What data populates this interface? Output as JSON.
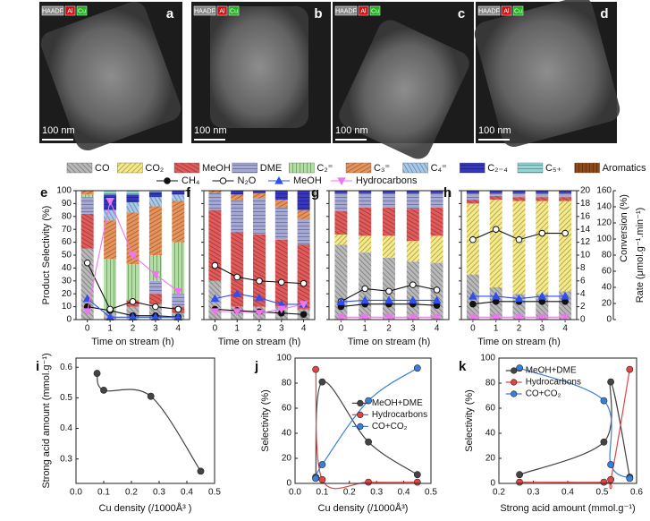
{
  "images": [
    {
      "letter": "a",
      "tags": [
        "HAADF",
        "Al",
        "Cu"
      ],
      "scale": "100 nm"
    },
    {
      "letter": "b",
      "tags": [
        "HAADF",
        "Al",
        "Cu"
      ],
      "scale": "100 nm"
    },
    {
      "letter": "c",
      "tags": [
        "HAADF",
        "Al",
        "Cu"
      ],
      "scale": "100 nm"
    },
    {
      "letter": "d",
      "tags": [
        "HAADF",
        "Al",
        "Cu"
      ],
      "scale": "100 nm"
    }
  ],
  "stack_series": [
    {
      "name": "CO",
      "color": "#b9b9b9",
      "hatch": 45
    },
    {
      "name": "CO₂",
      "color": "#f6ea86",
      "hatch": -45
    },
    {
      "name": "MeOH",
      "color": "#e25a5a",
      "hatch": 30
    },
    {
      "name": "DME",
      "color": "#a3a8d8",
      "hatch": 0
    },
    {
      "name": "C₂⁼",
      "color": "#b3dfa6",
      "hatch": 90
    },
    {
      "name": "C₃⁼",
      "color": "#e8935a",
      "hatch": -30
    },
    {
      "name": "C₄⁼",
      "color": "#a7c9ea",
      "hatch": 60
    },
    {
      "name": "C₂₋₄",
      "color": "#3535c8",
      "hatch": 0
    },
    {
      "name": "C₅₊",
      "color": "#8fd6d6",
      "hatch": 0
    },
    {
      "name": "Aromatics",
      "color": "#8b4a1c",
      "hatch": 90
    }
  ],
  "line_series": [
    {
      "name": "CH₄",
      "color": "#111111",
      "marker": "filled-circle",
      "axis": "conversion"
    },
    {
      "name": "N₂O",
      "color": "#111111",
      "marker": "open-circle",
      "axis": "conversion"
    },
    {
      "name": "MeOH",
      "color": "#2f4ff0",
      "marker": "triangle",
      "axis": "rate"
    },
    {
      "name": "Hydrocarbons",
      "color": "#ee77ee",
      "marker": "down-triangle",
      "axis": "rate"
    }
  ],
  "time_panels": {
    "categories": [
      "0",
      "1",
      "2",
      "3",
      "4"
    ],
    "x_label": "Time on stream (h)",
    "selectivity_axis": {
      "label": "Product Selectivity (%)",
      "ylim": [
        0,
        100
      ],
      "yticks": [
        0,
        10,
        20,
        30,
        40,
        50,
        60,
        70,
        80,
        90,
        100
      ]
    },
    "conversion_axis": {
      "label": "Conversion (%)",
      "ylim": [
        0,
        20
      ],
      "yticks": [
        0,
        2,
        4,
        6,
        8,
        10,
        12,
        14,
        16,
        18,
        20
      ]
    },
    "rate_axis": {
      "label": "Rate (μmol.g⁻¹.min⁻¹)",
      "ylim": [
        0,
        160
      ],
      "yticks": [
        0,
        20,
        40,
        60,
        80,
        100,
        120,
        140,
        160
      ]
    },
    "panels": [
      {
        "letter": "e",
        "stacks": [
          [
            55,
            5,
            10,
            12,
            5
          ],
          [
            0,
            0,
            0,
            0,
            0
          ],
          [
            27,
            0,
            5,
            8,
            5
          ],
          [
            13,
            0,
            0,
            10,
            10
          ],
          [
            2,
            42,
            28,
            20,
            40
          ],
          [
            3,
            30,
            40,
            38,
            32
          ],
          [
            0,
            8,
            8,
            7,
            5
          ],
          [
            0,
            12,
            6,
            4,
            3
          ],
          [
            0,
            3,
            3,
            1,
            0
          ],
          [
            0,
            0,
            0,
            0,
            0
          ]
        ],
        "lines": [
          [
            2,
            1.4,
            0.6,
            0.6,
            0.4
          ],
          [
            8.8,
            1.6,
            2.8,
            2,
            1.6
          ],
          [
            26,
            3,
            3,
            3,
            3
          ],
          [
            10,
            147,
            80,
            56,
            35
          ]
        ]
      },
      {
        "letter": "f",
        "stacks": [
          [
            30,
            10,
            10,
            10,
            8
          ],
          [
            0,
            0,
            0,
            0,
            0
          ],
          [
            55,
            58,
            56,
            52,
            50
          ],
          [
            13,
            25,
            28,
            25,
            20
          ],
          [
            0,
            0,
            0,
            0,
            0
          ],
          [
            2,
            4,
            4,
            6,
            7
          ],
          [
            0,
            0,
            0,
            0,
            0
          ],
          [
            0,
            3,
            2,
            7,
            15
          ],
          [
            0,
            0,
            0,
            0,
            0
          ],
          [
            0,
            0,
            0,
            0,
            0
          ]
        ],
        "lines": [
          [
            1.6,
            1.4,
            1.2,
            1,
            0.8
          ],
          [
            8.4,
            6.6,
            6,
            5.8,
            5.6
          ],
          [
            26,
            32,
            27,
            19,
            19
          ],
          [
            10,
            10,
            8,
            13,
            19
          ]
        ]
      },
      {
        "letter": "g",
        "stacks": [
          [
            58,
            52,
            48,
            45,
            44
          ],
          [
            8,
            13,
            17,
            16,
            21
          ],
          [
            18,
            22,
            22,
            25,
            22
          ],
          [
            14,
            11,
            11,
            12,
            11
          ],
          [
            0,
            0,
            0,
            0,
            0
          ],
          [
            0,
            0,
            0,
            0,
            0
          ],
          [
            0,
            0,
            0,
            0,
            0
          ],
          [
            2,
            2,
            2,
            2,
            2
          ],
          [
            0,
            0,
            0,
            0,
            0
          ],
          [
            0,
            0,
            0,
            0,
            0
          ]
        ],
        "lines": [
          [
            2,
            2.4,
            2.4,
            2.4,
            2.2
          ],
          [
            2.8,
            4.8,
            4.4,
            5.4,
            4.6
          ],
          [
            22,
            24,
            24,
            24,
            24
          ],
          [
            3,
            3,
            3,
            3,
            3
          ]
        ]
      },
      {
        "letter": "h",
        "stacks": [
          [
            35,
            25,
            20,
            20,
            22
          ],
          [
            55,
            68,
            72,
            72,
            70
          ],
          [
            3,
            3,
            3,
            3,
            3
          ],
          [
            5,
            2,
            3,
            3,
            3
          ],
          [
            0,
            0,
            0,
            0,
            0
          ],
          [
            0,
            0,
            0,
            0,
            0
          ],
          [
            0,
            0,
            0,
            0,
            0
          ],
          [
            2,
            2,
            2,
            2,
            2
          ],
          [
            0,
            0,
            0,
            0,
            0
          ],
          [
            0,
            0,
            0,
            0,
            0
          ]
        ],
        "lines": [
          [
            2.4,
            2.8,
            2.8,
            2.8,
            2.8
          ],
          [
            12.4,
            14,
            12.4,
            13.4,
            13.4
          ],
          [
            29,
            29,
            26,
            29,
            29
          ],
          [
            3,
            3,
            3,
            3,
            3
          ]
        ]
      }
    ]
  },
  "chart_data": [
    {
      "type": "line",
      "letter": "i",
      "x": [
        0.076,
        0.1,
        0.27,
        0.45
      ],
      "series": [
        {
          "color": "#444444",
          "values": [
            0.58,
            0.525,
            0.505,
            0.26
          ]
        }
      ],
      "xlim": [
        0,
        0.5
      ],
      "xticks": [
        {
          "value": 0,
          "label": "0.0"
        },
        0.1,
        0.2,
        0.3,
        0.4,
        0.5
      ],
      "ylim": [
        0.22,
        0.63
      ],
      "yticks": [
        0.3,
        0.4,
        0.5,
        0.6
      ],
      "xlabel": "Cu density (/1000Å³ )",
      "ylabel": "Strong acid amount (mmol.g⁻¹)"
    },
    {
      "type": "line",
      "letter": "j",
      "x": [
        0.076,
        0.1,
        0.27,
        0.45
      ],
      "series": [
        {
          "name": "MeOH+DME",
          "color": "#444444",
          "values": [
            5,
            81,
            33,
            7
          ]
        },
        {
          "name": "Hydrocarbons",
          "color": "#e04545",
          "values": [
            91,
            3,
            1,
            1
          ]
        },
        {
          "name": "CO+CO₂",
          "color": "#3a80d8",
          "values": [
            4,
            15,
            66,
            92
          ]
        }
      ],
      "xlim": [
        0,
        0.5
      ],
      "xticks": [
        {
          "value": 0,
          "label": "0.0"
        },
        0.1,
        0.2,
        0.3,
        0.4,
        0.5
      ],
      "ylim": [
        0,
        100
      ],
      "yticks": [
        0,
        20,
        40,
        60,
        80,
        100
      ],
      "legend": "center-right",
      "xlabel": "Cu density (/1000Å³)",
      "ylabel": "Selectivity (%)"
    },
    {
      "type": "line",
      "letter": "k",
      "x": [
        0.58,
        0.525,
        0.505,
        0.26
      ],
      "series": [
        {
          "name": "MeOH+DME",
          "color": "#444444",
          "values": [
            5,
            81,
            33,
            7
          ]
        },
        {
          "name": "Hydrocarbons",
          "color": "#e04545",
          "values": [
            91,
            3,
            1,
            1
          ]
        },
        {
          "name": "CO+CO₂",
          "color": "#3a80d8",
          "values": [
            4,
            15,
            66,
            92
          ]
        }
      ],
      "xlim": [
        0.2,
        0.6
      ],
      "xticks": [
        0.2,
        0.3,
        0.4,
        0.5,
        0.6
      ],
      "ylim": [
        0,
        100
      ],
      "yticks": [
        0,
        20,
        40,
        60,
        80,
        100
      ],
      "legend": "upper-left",
      "xlabel": "Strong acid amount (mmol.g⁻¹)",
      "ylabel": "Selectivity (%)"
    }
  ]
}
